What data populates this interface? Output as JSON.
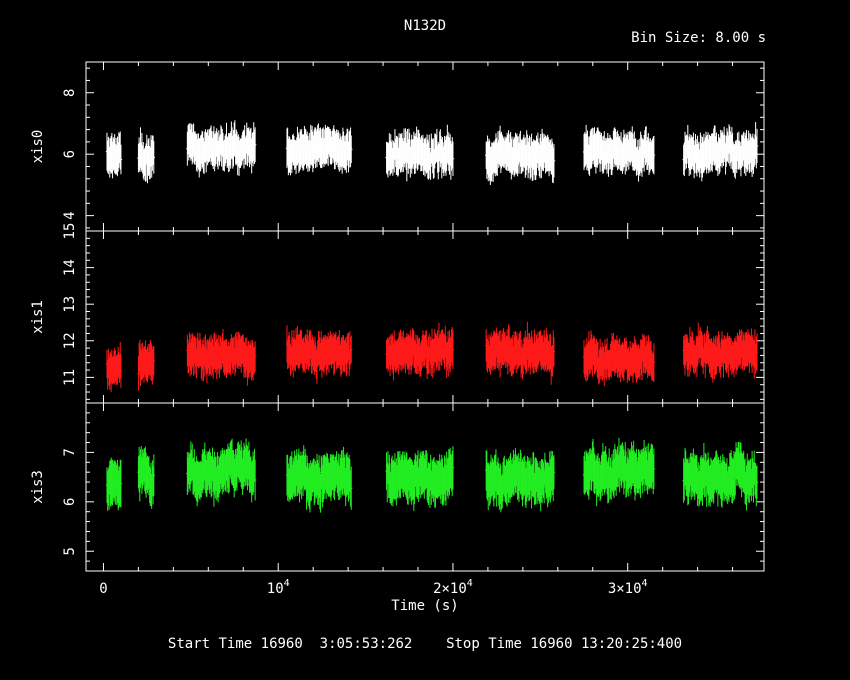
{
  "header": {
    "title": "N132D",
    "bin_size": "Bin Size: 8.00 s"
  },
  "footer": {
    "start_label": "Start Time",
    "start_value": "16960  3:05:53:262",
    "stop_label": "Stop Time",
    "stop_value": "16960 13:20:25:400"
  },
  "chart_data": {
    "type": "scatter",
    "xlabel": "Time (s)",
    "xlim": [
      -1000,
      37800
    ],
    "x_ticks": [
      {
        "value": 0,
        "base": "0",
        "exp": ""
      },
      {
        "value": 10000,
        "base": "10",
        "exp": "4"
      },
      {
        "value": 20000,
        "base": "2×10",
        "exp": "4"
      },
      {
        "value": 30000,
        "base": "3×10",
        "exp": "4"
      }
    ],
    "bin_size_s": 8.0,
    "segments": [
      [
        200,
        1000
      ],
      [
        2000,
        2900
      ],
      [
        4800,
        8700
      ],
      [
        10500,
        14200
      ],
      [
        16200,
        20000
      ],
      [
        21900,
        25800
      ],
      [
        27500,
        31500
      ],
      [
        33200,
        37400
      ]
    ],
    "series": [
      {
        "name": "xis0",
        "color": "#ffffff",
        "ylabel": "xis0",
        "ylim": [
          3.5,
          9.0
        ],
        "ticks": [
          4,
          6,
          8
        ],
        "mean": 6.0,
        "errorbar": 0.55,
        "segment_levels": [
          5.9,
          5.9,
          6.2,
          6.1,
          6.0,
          6.0,
          6.1,
          6.0
        ]
      },
      {
        "name": "xis1",
        "color": "#ff1a1a",
        "ylabel": "xis1",
        "ylim": [
          10.3,
          15.0
        ],
        "ticks": [
          11,
          12,
          13,
          14,
          15
        ],
        "mean": 11.6,
        "errorbar": 0.45,
        "segment_levels": [
          11.3,
          11.4,
          11.6,
          11.7,
          11.7,
          11.7,
          11.5,
          11.7
        ]
      },
      {
        "name": "xis3",
        "color": "#22ee22",
        "ylabel": "xis3",
        "ylim": [
          4.6,
          8.0
        ],
        "ticks": [
          5,
          6,
          7
        ],
        "mean": 6.5,
        "errorbar": 0.4,
        "segment_levels": [
          6.4,
          6.6,
          6.6,
          6.5,
          6.5,
          6.5,
          6.6,
          6.5
        ]
      }
    ]
  }
}
